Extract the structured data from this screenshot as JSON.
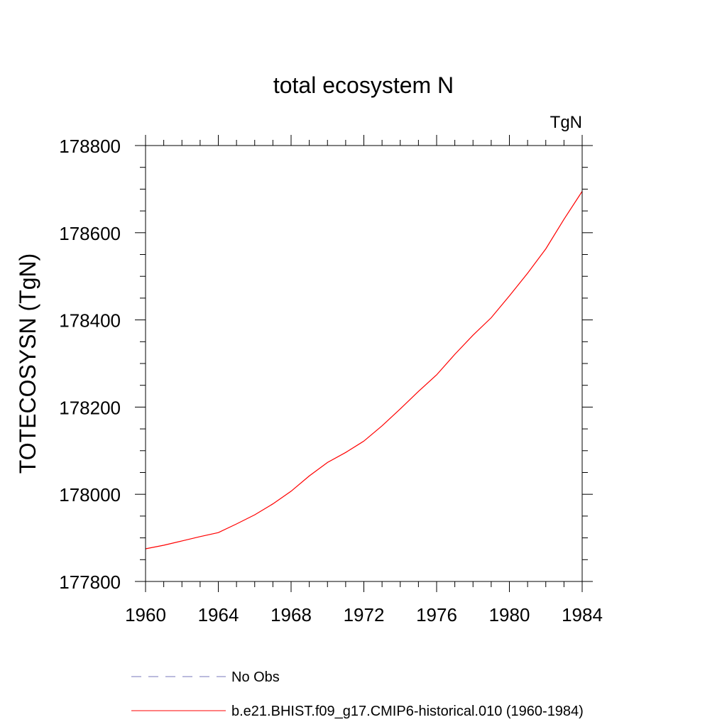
{
  "chart_data": {
    "type": "line",
    "title": "total ecosystem N",
    "units_label": "TgN",
    "ylabel": "TOTECOSYSN  (TgN)",
    "xlabel": "",
    "xlim": [
      1960,
      1984
    ],
    "ylim": [
      177800,
      178800
    ],
    "xticks": [
      1960,
      1964,
      1968,
      1972,
      1976,
      1980,
      1984
    ],
    "xtick_labels": [
      "1960",
      "1964",
      "1968",
      "1972",
      "1976",
      "1980",
      "1984"
    ],
    "yticks": [
      177800,
      178000,
      178200,
      178400,
      178600,
      178800
    ],
    "ytick_labels": [
      "177800",
      "178000",
      "178200",
      "178400",
      "178600",
      "178800"
    ],
    "x_minor_step": 1,
    "y_minor_step": 50,
    "grid": false,
    "legend_position": "bottom",
    "series": [
      {
        "name": "b.e21.BHIST.f09_g17.CMIP6-historical.010 (1960-1984)",
        "color": "#ff0000",
        "dash": "solid",
        "x": [
          1960,
          1961,
          1962,
          1963,
          1964,
          1965,
          1966,
          1967,
          1968,
          1969,
          1970,
          1971,
          1972,
          1973,
          1974,
          1975,
          1976,
          1977,
          1978,
          1979,
          1980,
          1981,
          1982,
          1983,
          1984
        ],
        "values": [
          177875,
          177883,
          177893,
          177903,
          177912,
          177932,
          177953,
          177978,
          178007,
          178042,
          178073,
          178096,
          178122,
          178157,
          178196,
          178236,
          178274,
          178321,
          178365,
          178405,
          178455,
          178507,
          178563,
          178631,
          178695
        ]
      }
    ],
    "legend": [
      {
        "label": "No Obs",
        "color": "#7777bb",
        "dash": "dashed"
      },
      {
        "label": "b.e21.BHIST.f09_g17.CMIP6-historical.010 (1960-1984)",
        "color": "#ff0000",
        "dash": "solid"
      }
    ]
  }
}
